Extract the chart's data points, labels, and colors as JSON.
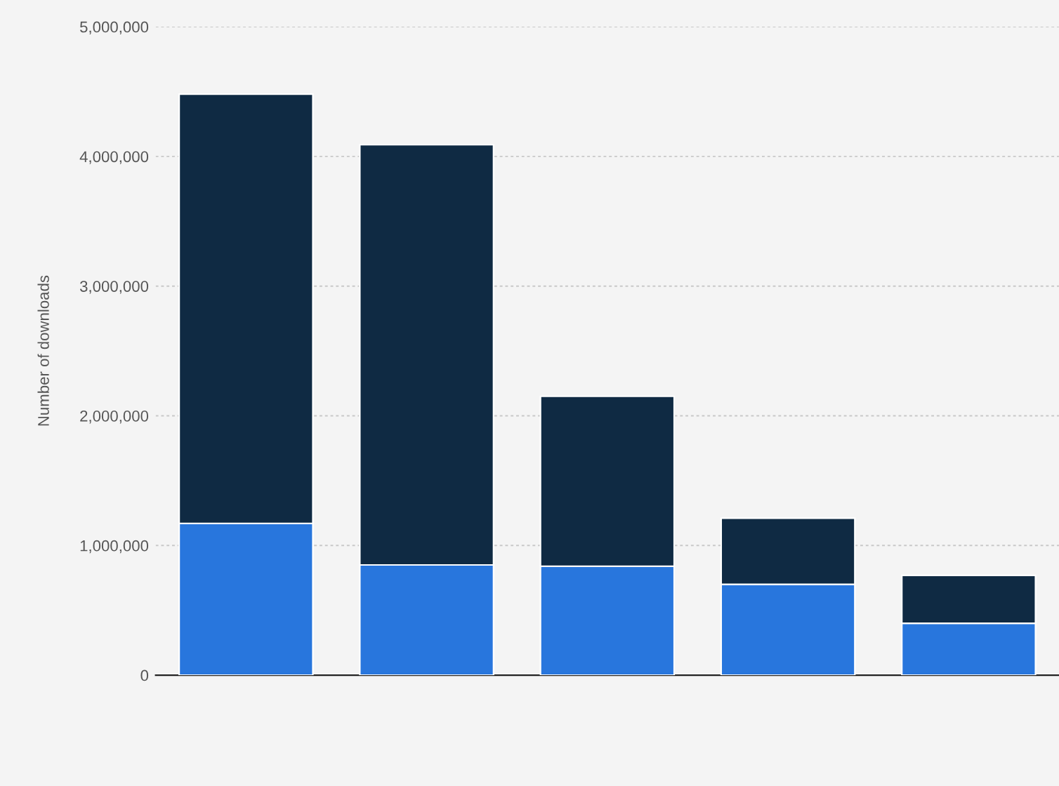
{
  "chart_data": {
    "type": "bar",
    "stacked": true,
    "ylabel": "Number of downloads",
    "categories": [
      null,
      null,
      null,
      null,
      null
    ],
    "series": [
      {
        "color": "#2876dd",
        "values": [
          1170000,
          850000,
          840000,
          700000,
          400000
        ]
      },
      {
        "color": "#0f2a43",
        "values": [
          3310000,
          3240000,
          1310000,
          510000,
          370000
        ]
      }
    ],
    "ylim": [
      0,
      5000000
    ],
    "yticks": [
      0,
      {
        "value": 1000000,
        "label": "1,000,000"
      },
      {
        "value": 2000000,
        "label": "2,000,000"
      },
      {
        "value": 3000000,
        "label": "3,000,000"
      },
      {
        "value": 4000000,
        "label": "4,000,000"
      },
      {
        "value": 5000000,
        "label": "5,000,000"
      }
    ],
    "grid": "y",
    "legend": false
  }
}
